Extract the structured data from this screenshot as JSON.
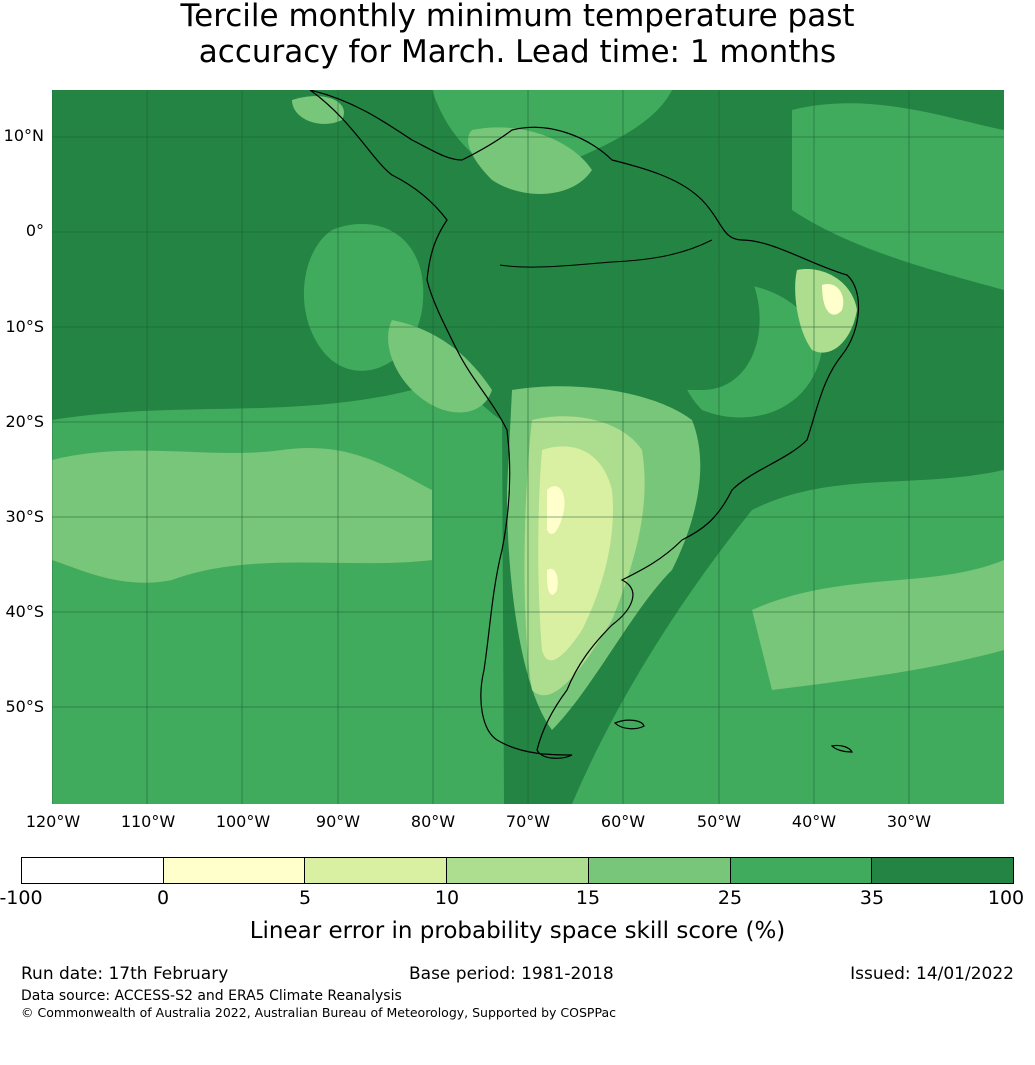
{
  "title": {
    "line1": "Tercile monthly minimum temperature past",
    "line2": "accuracy for March. Lead time: 1 months"
  },
  "map": {
    "lat_labels": [
      "10°N",
      "0°",
      "10°S",
      "20°S",
      "30°S",
      "40°S",
      "50°S"
    ],
    "lon_labels": [
      "120°W",
      "110°W",
      "100°W",
      "90°W",
      "80°W",
      "70°W",
      "60°W",
      "50°W",
      "40°W",
      "30°W"
    ]
  },
  "colorbar": {
    "ticks": [
      "-100",
      "0",
      "5",
      "10",
      "15",
      "25",
      "35",
      "100"
    ],
    "colors": [
      "#ffffff",
      "#ffffcc",
      "#d9f0a3",
      "#addd8e",
      "#78c679",
      "#41ab5d",
      "#238443"
    ],
    "label": "Linear error in probability space skill score (%)"
  },
  "footer": {
    "run_date": "Run date: 17th February",
    "base_period": "Base period: 1981-2018",
    "issued": "Issued: 14/01/2022",
    "data_source": "Data source: ACCESS-S2 and ERA5 Climate Reanalysis",
    "copyright": "© Commonwealth of Australia 2022, Australian Bureau of Meteorology, Supported by COSPPac"
  }
}
